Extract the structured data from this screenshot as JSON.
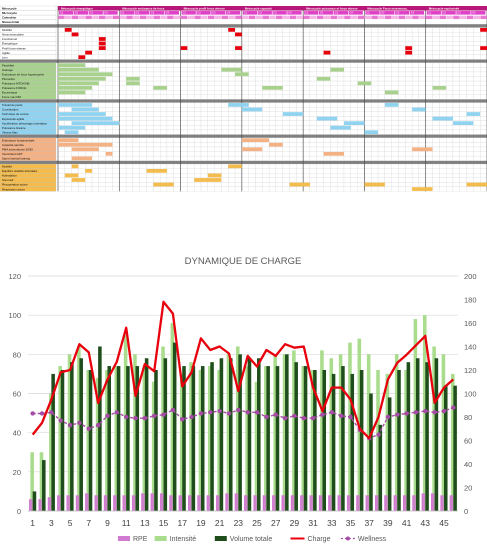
{
  "planning": {
    "left_labels": [
      {
        "group": "header",
        "text": "Mésocycle"
      },
      {
        "group": "header",
        "text": "Microcycle"
      },
      {
        "group": "header",
        "text": "Calendrier"
      },
      {
        "group": "header",
        "text": "Niveau Intial"
      },
      {
        "group": "red",
        "text": "Mobilité"
      },
      {
        "group": "red",
        "text": "Neuromusculaire"
      },
      {
        "group": "red",
        "text": "Fonctionnel"
      },
      {
        "group": "red",
        "text": "Énergétique"
      },
      {
        "group": "red",
        "text": "Profil force-vitesse"
      },
      {
        "group": "red",
        "text": "Agilité"
      },
      {
        "group": "red",
        "text": "Lien"
      },
      {
        "group": "green",
        "text": "Flexibilité"
      },
      {
        "group": "green",
        "text": "Gainage"
      },
      {
        "group": "green",
        "text": "Endurance de force hypertrophie"
      },
      {
        "group": "green",
        "text": "Pliométrie"
      },
      {
        "group": "green",
        "text": "Puissance MTD/GNB"
      },
      {
        "group": "green",
        "text": "Puissance FORCE"
      },
      {
        "group": "green",
        "text": "Excentrique"
      },
      {
        "group": "green",
        "text": "Force max RM"
      },
      {
        "group": "blue",
        "text": "Travail de pieds"
      },
      {
        "group": "blue",
        "text": "Coordination"
      },
      {
        "group": "blue",
        "text": "Technique de course"
      },
      {
        "group": "blue",
        "text": "Explosivité agilité"
      },
      {
        "group": "blue",
        "text": "Accélération démarrage orientation"
      },
      {
        "group": "blue",
        "text": "Puissance linéaire"
      },
      {
        "group": "blue",
        "text": "Vitesse Max"
      },
      {
        "group": "salmon",
        "text": "Endurance fondamentale"
      },
      {
        "group": "salmon",
        "text": "Capacité aérobie"
      },
      {
        "group": "salmon",
        "text": "PMA intermittente 30/30"
      },
      {
        "group": "salmon",
        "text": "Intermittent HIIT"
      },
      {
        "group": "salmon",
        "text": "Sprint interval training"
      },
      {
        "group": "orange",
        "text": "Mobilité"
      },
      {
        "group": "orange",
        "text": "Équilibre stabilité articulaire"
      },
      {
        "group": "orange",
        "text": "Hydratation"
      },
      {
        "group": "orange",
        "text": "Sommeil"
      },
      {
        "group": "orange",
        "text": "Récupération active"
      },
      {
        "group": "orange",
        "text": "Respiration active"
      }
    ],
    "mesocycles": [
      "Mésocycle énergétique",
      "Mésocycle endurance de force",
      "Mésocycle profil force vitesse",
      "Mésocycle capacité",
      "Mésocycle puissance et force vitesse",
      "Mésocycle Force neuromusc.",
      "Mésocycle explosivité"
    ],
    "microcycle_labels": [
      "C1",
      "C2",
      "C3",
      "C4"
    ],
    "colors": {
      "header_bg": "#7f7f7f",
      "group_sep": "#808080",
      "red_label": "#ffffff",
      "red_cell": "#e8000d",
      "green_label": "#a9d18e",
      "green_cell": "#a9d18e",
      "blue_label": "#8fd3f0",
      "blue_cell": "#8fd3f0",
      "salmon_label": "#f4b183",
      "salmon_cell": "#f4b183",
      "orange_label": "#f4bc4c",
      "orange_cell": "#f4bc4c",
      "mesocycle_header": "#b7177a",
      "microcycle_tag": "#e040c8"
    }
  },
  "chart_data": {
    "type": "bar",
    "title": "DYNAMIQUE DE CHARGE",
    "x": [
      1,
      2,
      3,
      4,
      5,
      6,
      7,
      8,
      9,
      10,
      11,
      12,
      13,
      14,
      15,
      16,
      17,
      18,
      19,
      20,
      21,
      22,
      23,
      24,
      25,
      26,
      27,
      28,
      29,
      30,
      31,
      32,
      33,
      34,
      35,
      36,
      37,
      38,
      39,
      40,
      41,
      42,
      43,
      44,
      45,
      46
    ],
    "x_tick_labels": [
      "1",
      "3",
      "5",
      "7",
      "9",
      "11",
      "13",
      "15",
      "17",
      "19",
      "21",
      "23",
      "25",
      "27",
      "29",
      "31",
      "33",
      "35",
      "37",
      "39",
      "41",
      "43",
      "45"
    ],
    "y_left_lim": [
      0,
      120
    ],
    "y_left_ticks": [
      "0",
      "20",
      "40",
      "60",
      "80",
      "100",
      "120"
    ],
    "y_right_lim": [
      0,
      200
    ],
    "y_right_ticks": [
      "0",
      "20",
      "40",
      "60",
      "80",
      "100",
      "120",
      "140",
      "160",
      "180",
      "200"
    ],
    "grid": true,
    "legend_position": "bottom",
    "series": [
      {
        "name": "RPE",
        "kind": "bar",
        "axis": "left",
        "color": "#d27ad0",
        "values": [
          6,
          6,
          7,
          8,
          8,
          8,
          9,
          8,
          8,
          8,
          8,
          8,
          9,
          9,
          9,
          8,
          8,
          8,
          8,
          8,
          8,
          9,
          9,
          8,
          8,
          8,
          8,
          8,
          8,
          8,
          8,
          8,
          8,
          8,
          8,
          8,
          8,
          8,
          8,
          8,
          8,
          8,
          9,
          9,
          8,
          8
        ]
      },
      {
        "name": "Intensité",
        "kind": "bar",
        "axis": "left",
        "color": "#a9dc8c",
        "values": [
          30,
          30,
          60,
          74,
          80,
          84,
          72,
          68,
          72,
          74,
          90,
          80,
          74,
          66,
          84,
          96,
          70,
          76,
          72,
          74,
          72,
          80,
          84,
          74,
          66,
          74,
          80,
          80,
          82,
          74,
          72,
          82,
          78,
          80,
          86,
          88,
          80,
          72,
          70,
          80,
          72,
          98,
          100,
          84,
          80,
          70
        ]
      },
      {
        "name": "Volume totale",
        "kind": "bar",
        "axis": "left",
        "color": "#1f4e1c",
        "values": [
          10,
          26,
          70,
          72,
          76,
          78,
          72,
          84,
          74,
          74,
          74,
          74,
          78,
          72,
          78,
          86,
          74,
          74,
          74,
          76,
          78,
          78,
          80,
          78,
          78,
          74,
          74,
          80,
          76,
          74,
          72,
          72,
          70,
          74,
          70,
          72,
          60,
          44,
          58,
          72,
          76,
          78,
          76,
          78,
          64,
          64
        ]
      },
      {
        "name": "Charge",
        "kind": "line",
        "axis": "right",
        "color": "#e8000d",
        "values": [
          65,
          75,
          95,
          118,
          120,
          142,
          135,
          92,
          112,
          127,
          156,
          98,
          125,
          119,
          178,
          168,
          106,
          118,
          147,
          137,
          140,
          134,
          102,
          132,
          123,
          137,
          132,
          142,
          139,
          140,
          105,
          85,
          105,
          105,
          95,
          70,
          62,
          80,
          112,
          126,
          133,
          141,
          149,
          92,
          105,
          112
        ]
      },
      {
        "name": "Wellness",
        "kind": "line-markers",
        "axis": "right",
        "color": "#a64ca6",
        "values": [
          83,
          83,
          84,
          77,
          73,
          75,
          70,
          73,
          81,
          84,
          80,
          79,
          79,
          81,
          82,
          86,
          78,
          80,
          83,
          84,
          85,
          83,
          86,
          84,
          84,
          80,
          82,
          79,
          81,
          79,
          79,
          82,
          84,
          81,
          80,
          69,
          62,
          65,
          80,
          82,
          83,
          84,
          85,
          84,
          85,
          88
        ]
      }
    ]
  }
}
